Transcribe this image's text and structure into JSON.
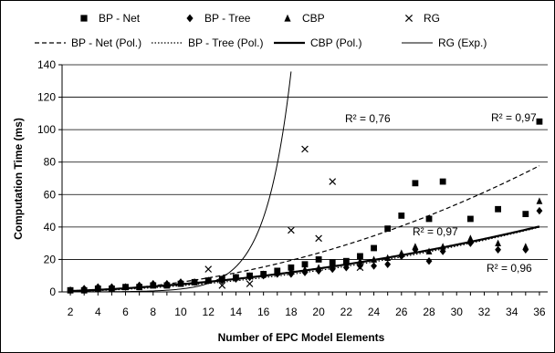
{
  "chart_data": {
    "type": "scatter",
    "title": "",
    "xlabel": "Number of EPC Model Elements",
    "ylabel": "Computation Time (ms)",
    "xlim": [
      1.4,
      36.6
    ],
    "ylim": [
      0,
      140
    ],
    "x_ticks": [
      "2",
      "4",
      "6",
      "8",
      "10",
      "12",
      "14",
      "16",
      "18",
      "20",
      "22",
      "24",
      "26",
      "28",
      "30",
      "32",
      "34",
      "36"
    ],
    "y_ticks": [
      "0",
      "20",
      "40",
      "60",
      "80",
      "100",
      "120",
      "140"
    ],
    "grid": "horizontal",
    "legend_position": "top",
    "series": [
      {
        "name": "BP - Net",
        "marker": "square",
        "color": "#000000",
        "points": [
          [
            2,
            1
          ],
          [
            3,
            1
          ],
          [
            4,
            2
          ],
          [
            5,
            2
          ],
          [
            6,
            3
          ],
          [
            7,
            3
          ],
          [
            8,
            4
          ],
          [
            9,
            4
          ],
          [
            10,
            5
          ],
          [
            11,
            6
          ],
          [
            12,
            7
          ],
          [
            13,
            8
          ],
          [
            14,
            9
          ],
          [
            15,
            10
          ],
          [
            16,
            11
          ],
          [
            17,
            13
          ],
          [
            18,
            15
          ],
          [
            19,
            17
          ],
          [
            20,
            20
          ],
          [
            21,
            18
          ],
          [
            22,
            19
          ],
          [
            23,
            22
          ],
          [
            24,
            27
          ],
          [
            25,
            39
          ],
          [
            26,
            47
          ],
          [
            27,
            67
          ],
          [
            28,
            45
          ],
          [
            29,
            68
          ],
          [
            31,
            45
          ],
          [
            33,
            51
          ],
          [
            35,
            48
          ],
          [
            36,
            105
          ]
        ]
      },
      {
        "name": "BP - Tree",
        "marker": "diamond",
        "color": "#000000",
        "points": [
          [
            2,
            1
          ],
          [
            3,
            2
          ],
          [
            4,
            3
          ],
          [
            5,
            3
          ],
          [
            6,
            3
          ],
          [
            7,
            4
          ],
          [
            8,
            5
          ],
          [
            9,
            5
          ],
          [
            10,
            6
          ],
          [
            11,
            6
          ],
          [
            12,
            7
          ],
          [
            13,
            7
          ],
          [
            14,
            8
          ],
          [
            15,
            9
          ],
          [
            16,
            10
          ],
          [
            17,
            11
          ],
          [
            18,
            11
          ],
          [
            19,
            12
          ],
          [
            20,
            13
          ],
          [
            21,
            14
          ],
          [
            22,
            15
          ],
          [
            23,
            16
          ],
          [
            24,
            16
          ],
          [
            25,
            17
          ],
          [
            26,
            22
          ],
          [
            27,
            26
          ],
          [
            28,
            19
          ],
          [
            29,
            25
          ],
          [
            31,
            30
          ],
          [
            33,
            26
          ],
          [
            35,
            26
          ],
          [
            36,
            50
          ]
        ]
      },
      {
        "name": "CBP",
        "marker": "triangle",
        "color": "#000000",
        "points": [
          [
            2,
            1
          ],
          [
            3,
            1
          ],
          [
            4,
            2
          ],
          [
            5,
            2
          ],
          [
            6,
            3
          ],
          [
            7,
            3
          ],
          [
            8,
            4
          ],
          [
            9,
            4
          ],
          [
            10,
            5
          ],
          [
            11,
            6
          ],
          [
            12,
            7
          ],
          [
            13,
            8
          ],
          [
            14,
            9
          ],
          [
            15,
            10
          ],
          [
            16,
            11
          ],
          [
            17,
            12
          ],
          [
            18,
            13
          ],
          [
            19,
            14
          ],
          [
            20,
            15
          ],
          [
            21,
            16
          ],
          [
            22,
            18
          ],
          [
            23,
            19
          ],
          [
            24,
            20
          ],
          [
            25,
            21
          ],
          [
            26,
            24
          ],
          [
            27,
            28
          ],
          [
            28,
            25
          ],
          [
            29,
            28
          ],
          [
            31,
            33
          ],
          [
            33,
            30
          ],
          [
            35,
            28
          ],
          [
            36,
            56
          ]
        ]
      },
      {
        "name": "RG",
        "marker": "x",
        "color": "#000000",
        "points": [
          [
            12,
            14
          ],
          [
            13,
            4
          ],
          [
            15,
            5
          ],
          [
            18,
            38
          ],
          [
            19,
            88
          ],
          [
            20,
            33
          ],
          [
            21,
            68
          ],
          [
            23,
            15
          ]
        ]
      }
    ],
    "trendlines": [
      {
        "name": "BP - Net (Pol.)",
        "style": "dashed",
        "coeffs": [
          0.06,
          0.0,
          0.0
        ],
        "r2_label": "R² = 0,97"
      },
      {
        "name": "BP - Tree (Pol.)",
        "style": "dotted",
        "coeffs": [
          0.028,
          0.1,
          0.0
        ],
        "r2_label": "R² = 0,97"
      },
      {
        "name": "CBP (Pol.)",
        "style": "thick",
        "coeffs": [
          0.025,
          0.22,
          0.0
        ],
        "r2_label": "R² = 0,96"
      },
      {
        "name": "RG (Exp.)",
        "style": "thin",
        "exp": [
          0.0078,
          0.5425
        ],
        "r2_label": "R² = 0,76"
      }
    ]
  }
}
